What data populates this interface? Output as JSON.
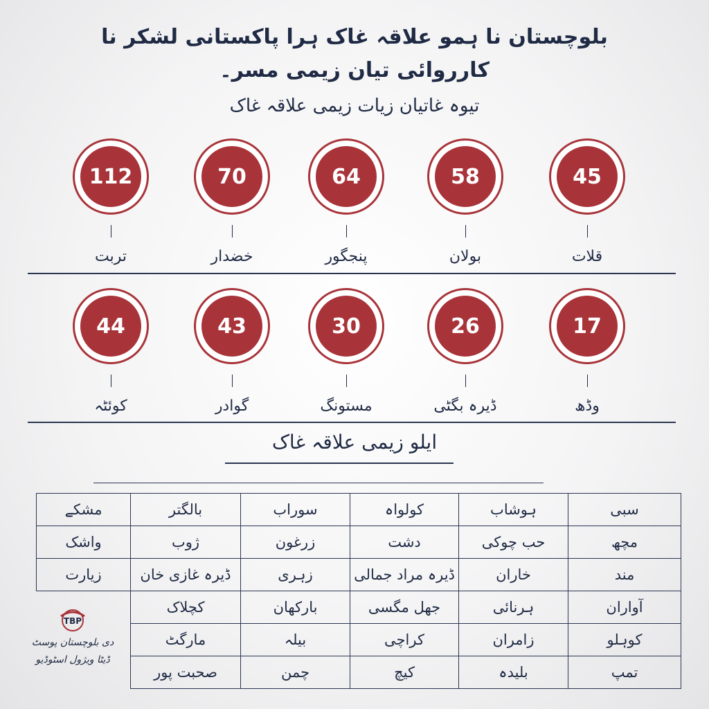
{
  "header": {
    "title": "بلوچستان نا ہمو علاقہ غاک ہرا پاکستانی لشکر نا کارروائی تیان زیمی مسر۔",
    "subtitle": "تیوہ غاتیان زیات زیمی علاقہ غاک"
  },
  "top_areas": [
    [
      {
        "number": "45",
        "name": "قلات"
      },
      {
        "number": "58",
        "name": "بولان"
      },
      {
        "number": "64",
        "name": "پنجگور"
      },
      {
        "number": "70",
        "name": "خضدار"
      },
      {
        "number": "112",
        "name": "تربت"
      }
    ],
    [
      {
        "number": "17",
        "name": "وڈھ"
      },
      {
        "number": "26",
        "name": "ڈیرہ بگٹی"
      },
      {
        "number": "30",
        "name": "مستونگ"
      },
      {
        "number": "43",
        "name": "گوادر"
      },
      {
        "number": "44",
        "name": "کوئٹہ"
      }
    ]
  ],
  "other_areas": {
    "heading": "ایلو زیمی علاقہ غاک",
    "table": {
      "rows": [
        [
          "سبی",
          "ہوشاب",
          "کولواہ",
          "سوراب",
          "بالگتر",
          "مشکے"
        ],
        [
          "مچھ",
          "حب چوکی",
          "دشت",
          "زرغون",
          "ژوب",
          "واشک"
        ],
        [
          "مند",
          "خاران",
          "ڈیرہ مراد جمالی",
          "زہری",
          "ڈیرہ غازی خان",
          "زیارت"
        ],
        [
          "آواران",
          "ہرنائی",
          "جھل مگسی",
          "بارکھان",
          "کچلاک"
        ],
        [
          "کوہلو",
          "زامران",
          "کراچی",
          "بیلہ",
          "مارگٹ"
        ],
        [
          "تمپ",
          "بلیدہ",
          "کیچ",
          "چمن",
          "صحبت پور"
        ]
      ]
    }
  },
  "logo": {
    "name": "دی بلوچستان پوسٹ",
    "tagline": "ڈیٹا ویژول اسٹوڈیو"
  }
}
